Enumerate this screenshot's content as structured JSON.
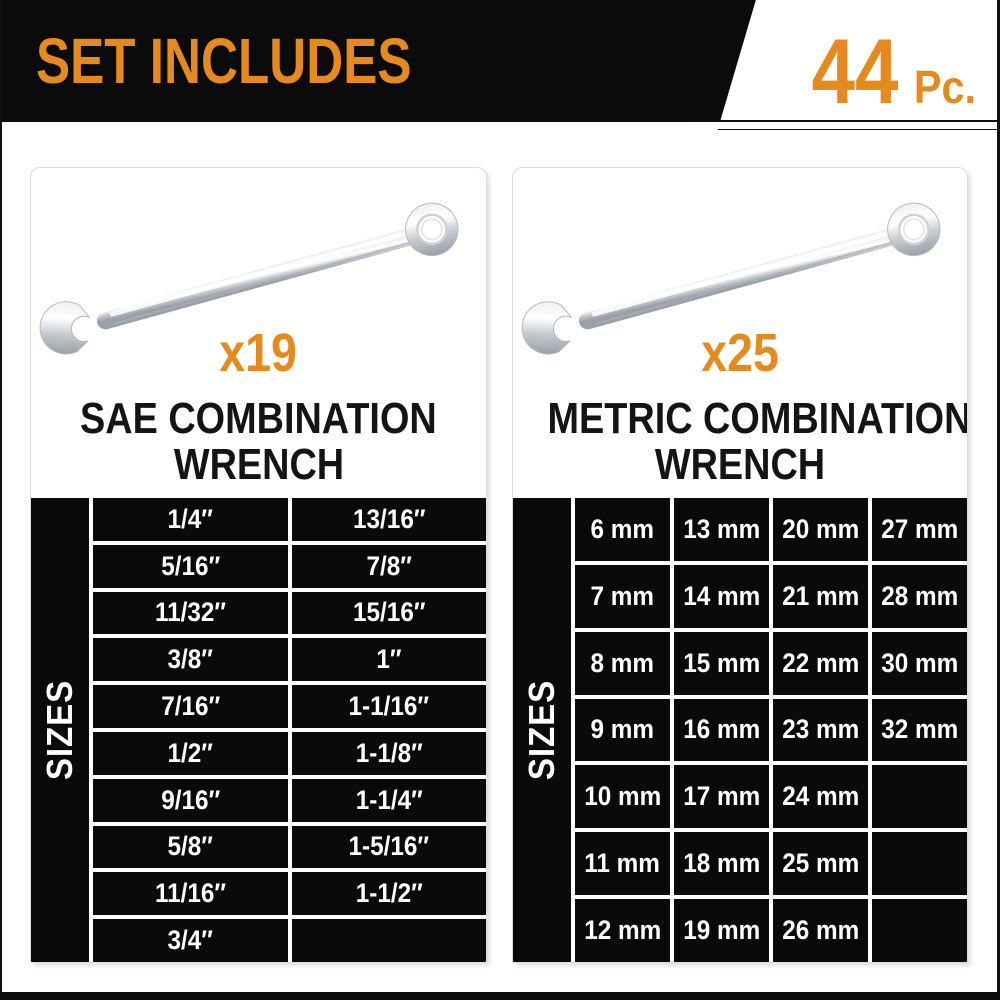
{
  "colors": {
    "accent_orange": "#E58A1F",
    "panel_black": "#0A0A0A",
    "title_dark": "#141414",
    "card_border": "#DCDCDC",
    "white": "#FFFFFF"
  },
  "header": {
    "title": "SET INCLUDES",
    "count_value": "44",
    "count_unit": "Pc."
  },
  "panels": [
    {
      "count_label": "x19",
      "title_line1": "SAE COMBINATION",
      "title_line2": "WRENCH",
      "sizes_label": "SIZES",
      "table": {
        "columns": 2,
        "rows": [
          [
            "1/4″",
            "13/16″"
          ],
          [
            "5/16″",
            "7/8″"
          ],
          [
            "11/32″",
            "15/16″"
          ],
          [
            "3/8″",
            "1″"
          ],
          [
            "7/16″",
            "1-1/16″"
          ],
          [
            "1/2″",
            "1-1/8″"
          ],
          [
            "9/16″",
            "1-1/4″"
          ],
          [
            "5/8″",
            "1-5/16″"
          ],
          [
            "11/16″",
            "1-1/2″"
          ],
          [
            "3/4″",
            ""
          ]
        ]
      }
    },
    {
      "count_label": "x25",
      "title_line1": "METRIC COMBINATION",
      "title_line2": "WRENCH",
      "sizes_label": "SIZES",
      "table": {
        "columns": 4,
        "rows": [
          [
            "6 mm",
            "13 mm",
            "20 mm",
            "27 mm"
          ],
          [
            "7 mm",
            "14 mm",
            "21 mm",
            "28 mm"
          ],
          [
            "8 mm",
            "15 mm",
            "22 mm",
            "30 mm"
          ],
          [
            "9 mm",
            "16 mm",
            "23 mm",
            "32 mm"
          ],
          [
            "10 mm",
            "17 mm",
            "24 mm",
            ""
          ],
          [
            "11 mm",
            "18 mm",
            "25 mm",
            ""
          ],
          [
            "12 mm",
            "19 mm",
            "26 mm",
            ""
          ]
        ]
      }
    }
  ]
}
